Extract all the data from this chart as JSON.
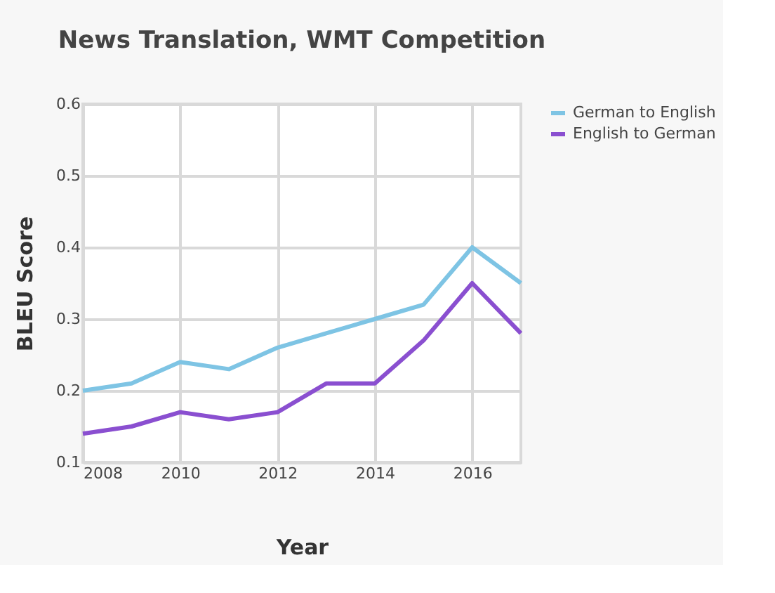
{
  "chart_data": {
    "type": "line",
    "title": "News Translation, WMT Competition",
    "xlabel": "Year",
    "ylabel": "BLEU Score",
    "x": [
      2008,
      2009,
      2010,
      2011,
      2012,
      2013,
      2014,
      2015,
      2016,
      2017
    ],
    "series": [
      {
        "name": "German to English",
        "color": "#7ec4e4",
        "values": [
          0.2,
          0.21,
          0.24,
          0.23,
          0.26,
          0.28,
          0.3,
          0.32,
          0.4,
          0.35
        ]
      },
      {
        "name": "English to German",
        "color": "#8a4fd0",
        "values": [
          0.14,
          0.15,
          0.17,
          0.16,
          0.17,
          0.21,
          0.21,
          0.27,
          0.35,
          0.28
        ]
      }
    ],
    "xlim": [
      2008,
      2017
    ],
    "xticks": [
      2008,
      2010,
      2012,
      2014,
      2016
    ],
    "ylim": [
      0.1,
      0.6
    ],
    "yticks": [
      0.1,
      0.2,
      0.3,
      0.4,
      0.5,
      0.6
    ],
    "grid": true,
    "legend": "top right",
    "marker": "none",
    "line_style": "solid"
  }
}
